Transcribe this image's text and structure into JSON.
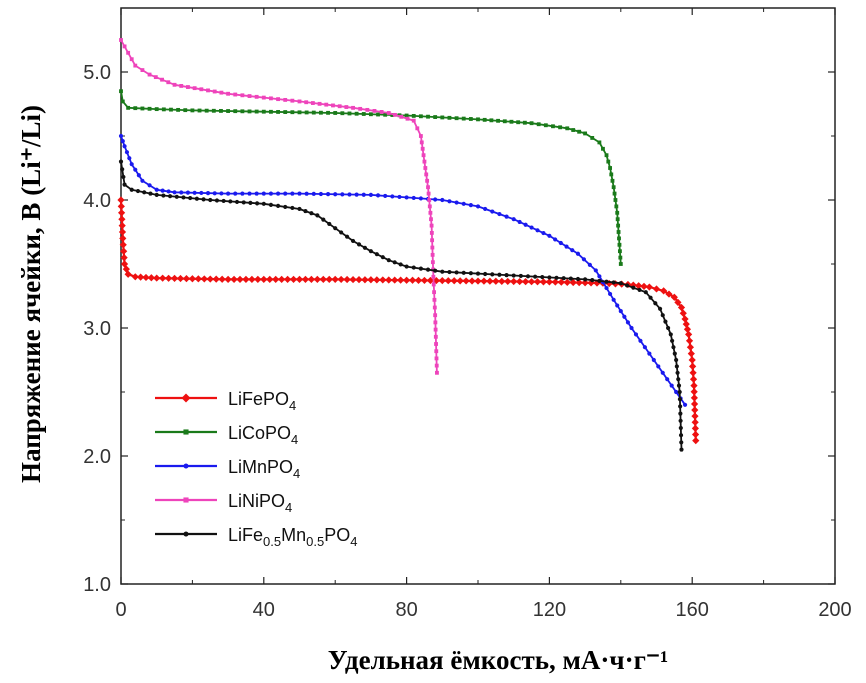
{
  "chart_data": {
    "type": "line",
    "xlabel": "Удельная ёмкость, мА·ч·г⁻¹",
    "ylabel": "Напряжение ячейки, В (Li⁺/Li)",
    "xlim": [
      0,
      200
    ],
    "ylim": [
      1.0,
      5.5
    ],
    "x_ticks": [
      "0",
      "40",
      "80",
      "120",
      "160",
      "200"
    ],
    "y_ticks": [
      "1.0",
      "2.0",
      "3.0",
      "4.0",
      "5.0"
    ],
    "grid": false,
    "legend_position": "bottom-left",
    "series": [
      {
        "name": "LiFePO4",
        "name_main": "LiFePO",
        "name_sub": "4",
        "color": "#ee1111",
        "marker": "diamond",
        "points": [
          [
            0,
            4.0
          ],
          [
            0.5,
            3.7
          ],
          [
            1,
            3.5
          ],
          [
            2,
            3.42
          ],
          [
            4,
            3.4
          ],
          [
            10,
            3.39
          ],
          [
            30,
            3.38
          ],
          [
            60,
            3.38
          ],
          [
            90,
            3.37
          ],
          [
            120,
            3.36
          ],
          [
            135,
            3.35
          ],
          [
            142,
            3.34
          ],
          [
            148,
            3.32
          ],
          [
            152,
            3.29
          ],
          [
            155,
            3.24
          ],
          [
            157,
            3.16
          ],
          [
            158,
            3.07
          ],
          [
            159,
            2.95
          ],
          [
            160,
            2.75
          ],
          [
            160.5,
            2.55
          ],
          [
            161,
            2.12
          ]
        ]
      },
      {
        "name": "LiCoPO4",
        "name_main": "LiCoPO",
        "name_sub": "4",
        "color": "#1a7a1a",
        "marker": "square",
        "points": [
          [
            0,
            4.85
          ],
          [
            0.5,
            4.77
          ],
          [
            2,
            4.72
          ],
          [
            10,
            4.71
          ],
          [
            20,
            4.7
          ],
          [
            40,
            4.69
          ],
          [
            60,
            4.68
          ],
          [
            80,
            4.66
          ],
          [
            100,
            4.63
          ],
          [
            115,
            4.6
          ],
          [
            125,
            4.56
          ],
          [
            130,
            4.52
          ],
          [
            134,
            4.45
          ],
          [
            136,
            4.35
          ],
          [
            137,
            4.25
          ],
          [
            138,
            4.1
          ],
          [
            139,
            3.9
          ],
          [
            139.5,
            3.7
          ],
          [
            140,
            3.5
          ]
        ]
      },
      {
        "name": "LiMnPO4",
        "name_main": "LiMnPO",
        "name_sub": "4",
        "color": "#1a1aee",
        "marker": "circle",
        "points": [
          [
            0,
            4.5
          ],
          [
            1,
            4.42
          ],
          [
            3,
            4.28
          ],
          [
            6,
            4.15
          ],
          [
            10,
            4.08
          ],
          [
            15,
            4.06
          ],
          [
            30,
            4.05
          ],
          [
            50,
            4.05
          ],
          [
            70,
            4.04
          ],
          [
            80,
            4.02
          ],
          [
            90,
            4.0
          ],
          [
            100,
            3.95
          ],
          [
            110,
            3.85
          ],
          [
            120,
            3.72
          ],
          [
            128,
            3.58
          ],
          [
            133,
            3.45
          ],
          [
            138,
            3.22
          ],
          [
            143,
            3.0
          ],
          [
            148,
            2.8
          ],
          [
            153,
            2.6
          ],
          [
            158,
            2.4
          ]
        ]
      },
      {
        "name": "LiNiPO4",
        "name_main": "LiNiPO",
        "name_sub": "4",
        "color": "#ee44bb",
        "marker": "square",
        "points": [
          [
            0,
            5.25
          ],
          [
            2,
            5.15
          ],
          [
            4,
            5.05
          ],
          [
            8,
            4.98
          ],
          [
            15,
            4.9
          ],
          [
            30,
            4.83
          ],
          [
            50,
            4.77
          ],
          [
            65,
            4.72
          ],
          [
            75,
            4.68
          ],
          [
            82,
            4.62
          ],
          [
            84,
            4.5
          ],
          [
            85,
            4.3
          ],
          [
            86,
            4.1
          ],
          [
            87,
            3.8
          ],
          [
            87.5,
            3.4
          ],
          [
            88,
            3.1
          ],
          [
            88.5,
            2.65
          ]
        ]
      },
      {
        "name": "LiFe0.5Mn0.5PO4",
        "name_main": "LiFe",
        "name_sub": "0.5",
        "name_main2": "Mn",
        "name_sub2": "0.5",
        "name_main3": "PO",
        "name_sub3": "4",
        "color": "#111111",
        "marker": "circle",
        "points": [
          [
            0,
            4.3
          ],
          [
            1,
            4.12
          ],
          [
            3,
            4.08
          ],
          [
            10,
            4.04
          ],
          [
            25,
            4.0
          ],
          [
            40,
            3.97
          ],
          [
            50,
            3.93
          ],
          [
            55,
            3.88
          ],
          [
            60,
            3.78
          ],
          [
            65,
            3.68
          ],
          [
            70,
            3.6
          ],
          [
            75,
            3.53
          ],
          [
            80,
            3.48
          ],
          [
            90,
            3.44
          ],
          [
            110,
            3.41
          ],
          [
            130,
            3.38
          ],
          [
            140,
            3.35
          ],
          [
            147,
            3.28
          ],
          [
            151,
            3.15
          ],
          [
            154,
            2.95
          ],
          [
            155.5,
            2.75
          ],
          [
            156.5,
            2.5
          ],
          [
            157,
            2.05
          ]
        ]
      }
    ]
  }
}
